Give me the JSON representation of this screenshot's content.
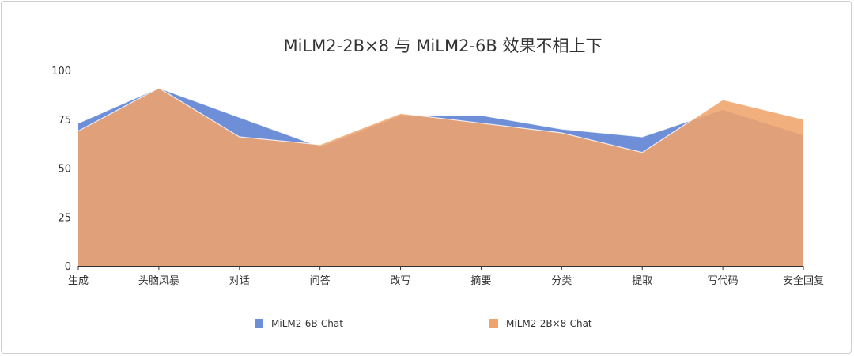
{
  "chart_data": {
    "type": "area",
    "title": "MiLM2-2B×8 与 MiLM2-6B 效果不相上下",
    "xlabel": "",
    "ylabel": "",
    "ylim": [
      0,
      100
    ],
    "yticks": [
      0,
      25,
      50,
      75,
      100
    ],
    "grid": false,
    "legend_position": "bottom",
    "categories": [
      "生成",
      "头脑风暴",
      "对话",
      "问答",
      "改写",
      "摘要",
      "分类",
      "提取",
      "写代码",
      "安全回复"
    ],
    "series": [
      {
        "name": "MiLM2-6B-Chat",
        "color": "#6e8fd8",
        "values": [
          73,
          91,
          76,
          61,
          77,
          77,
          70,
          66,
          80,
          67
        ]
      },
      {
        "name": "MiLM2-2B×8-Chat",
        "color": "#f0a46c",
        "values": [
          69,
          91,
          66,
          62,
          78,
          73,
          68,
          58,
          85,
          75
        ]
      }
    ]
  }
}
